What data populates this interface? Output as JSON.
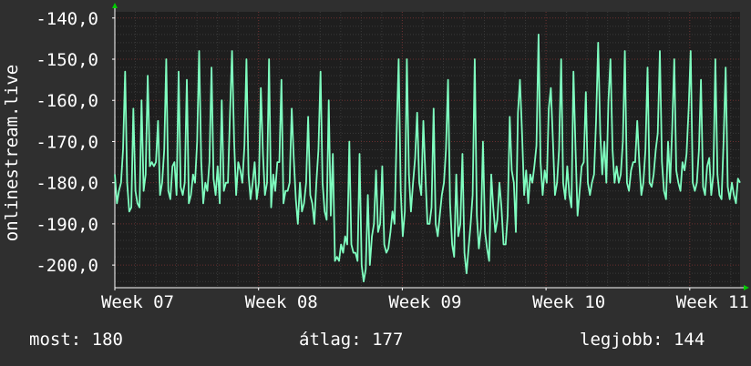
{
  "colors": {
    "background": "#2f2f2f",
    "plot_background": "#1e1e1e",
    "grid_minor": "#3a3a3a",
    "grid_major": "#6b2f2f",
    "line": "#7fffc0",
    "axis": "#ffffff",
    "arrow": "#00cc00"
  },
  "chart_data": {
    "type": "line",
    "title": "",
    "ylabel": "onlinestream.live",
    "xlabel": "",
    "x_ticks": [
      "Week 07",
      "Week 08",
      "Week 09",
      "Week 10",
      "Week 11"
    ],
    "y_ticks": [
      "-140,0",
      "-150,0",
      "-160,0",
      "-170,0",
      "-180,0",
      "-190,0",
      "-200,0"
    ],
    "y_tick_values": [
      -140,
      -150,
      -160,
      -170,
      -180,
      -190,
      -200
    ],
    "ylim": [
      -205.5,
      -138.5
    ],
    "xlim": [
      0,
      4.35
    ],
    "grid": true,
    "series": [
      {
        "values": [
          -178,
          -185,
          -182,
          -180,
          -172,
          -153,
          -180,
          -187,
          -186,
          -162,
          -182,
          -185,
          -186,
          -160,
          -182,
          -178,
          -154,
          -176,
          -175,
          -176,
          -175,
          -165,
          -183,
          -180,
          -172,
          -150,
          -182,
          -184,
          -176,
          -175,
          -183,
          -153,
          -181,
          -183,
          -180,
          -155,
          -185,
          -183,
          -178,
          -180,
          -170,
          -148,
          -175,
          -185,
          -180,
          -182,
          -175,
          -152,
          -179,
          -183,
          -176,
          -185,
          -160,
          -182,
          -180,
          -180,
          -163,
          -148,
          -170,
          -183,
          -175,
          -177,
          -180,
          -171,
          -150,
          -178,
          -184,
          -180,
          -175,
          -184,
          -180,
          -157,
          -173,
          -183,
          -180,
          -150,
          -186,
          -178,
          -182,
          -175,
          -175,
          -155,
          -185,
          -182,
          -182,
          -180,
          -162,
          -174,
          -184,
          -190,
          -180,
          -187,
          -185,
          -180,
          -164,
          -183,
          -185,
          -190,
          -180,
          -172,
          -153,
          -180,
          -187,
          -189,
          -160,
          -188,
          -173,
          -199,
          -198,
          -199,
          -195,
          -197,
          -193,
          -195,
          -170,
          -195,
          -197,
          -197,
          -199,
          -173,
          -200,
          -204,
          -201,
          -183,
          -200,
          -193,
          -190,
          -177,
          -192,
          -190,
          -176,
          -195,
          -197,
          -196,
          -192,
          -187,
          -190,
          -168,
          -150,
          -182,
          -193,
          -187,
          -150,
          -178,
          -187,
          -180,
          -174,
          -163,
          -180,
          -183,
          -165,
          -178,
          -190,
          -190,
          -186,
          -162,
          -190,
          -193,
          -188,
          -183,
          -180,
          -172,
          -155,
          -185,
          -195,
          -198,
          -178,
          -193,
          -190,
          -173,
          -197,
          -202,
          -196,
          -190,
          -183,
          -150,
          -188,
          -196,
          -191,
          -170,
          -192,
          -196,
          -199,
          -178,
          -186,
          -192,
          -189,
          -180,
          -186,
          -195,
          -195,
          -188,
          -164,
          -177,
          -180,
          -192,
          -163,
          -155,
          -168,
          -183,
          -177,
          -185,
          -178,
          -180,
          -176,
          -171,
          -144,
          -175,
          -183,
          -177,
          -180,
          -162,
          -157,
          -170,
          -183,
          -180,
          -172,
          -150,
          -180,
          -184,
          -176,
          -183,
          -186,
          -153,
          -172,
          -188,
          -182,
          -176,
          -175,
          -158,
          -180,
          -183,
          -180,
          -178,
          -165,
          -146,
          -168,
          -178,
          -170,
          -180,
          -160,
          -150,
          -172,
          -180,
          -176,
          -180,
          -178,
          -170,
          -148,
          -180,
          -182,
          -177,
          -175,
          -175,
          -165,
          -175,
          -183,
          -180,
          -172,
          -152,
          -180,
          -181,
          -178,
          -172,
          -168,
          -148,
          -175,
          -182,
          -184,
          -170,
          -180,
          -167,
          -150,
          -177,
          -180,
          -182,
          -175,
          -177,
          -173,
          -162,
          -148,
          -180,
          -182,
          -180,
          -172,
          -155,
          -181,
          -183,
          -176,
          -174,
          -183,
          -178,
          -150,
          -178,
          -183,
          -184,
          -170,
          -152,
          -181,
          -184,
          -180,
          -183,
          -185,
          -179,
          -180
        ]
      }
    ]
  },
  "legend": {
    "now": "most: 180",
    "avg": "átlag: 177",
    "best": "legjobb: 144"
  }
}
